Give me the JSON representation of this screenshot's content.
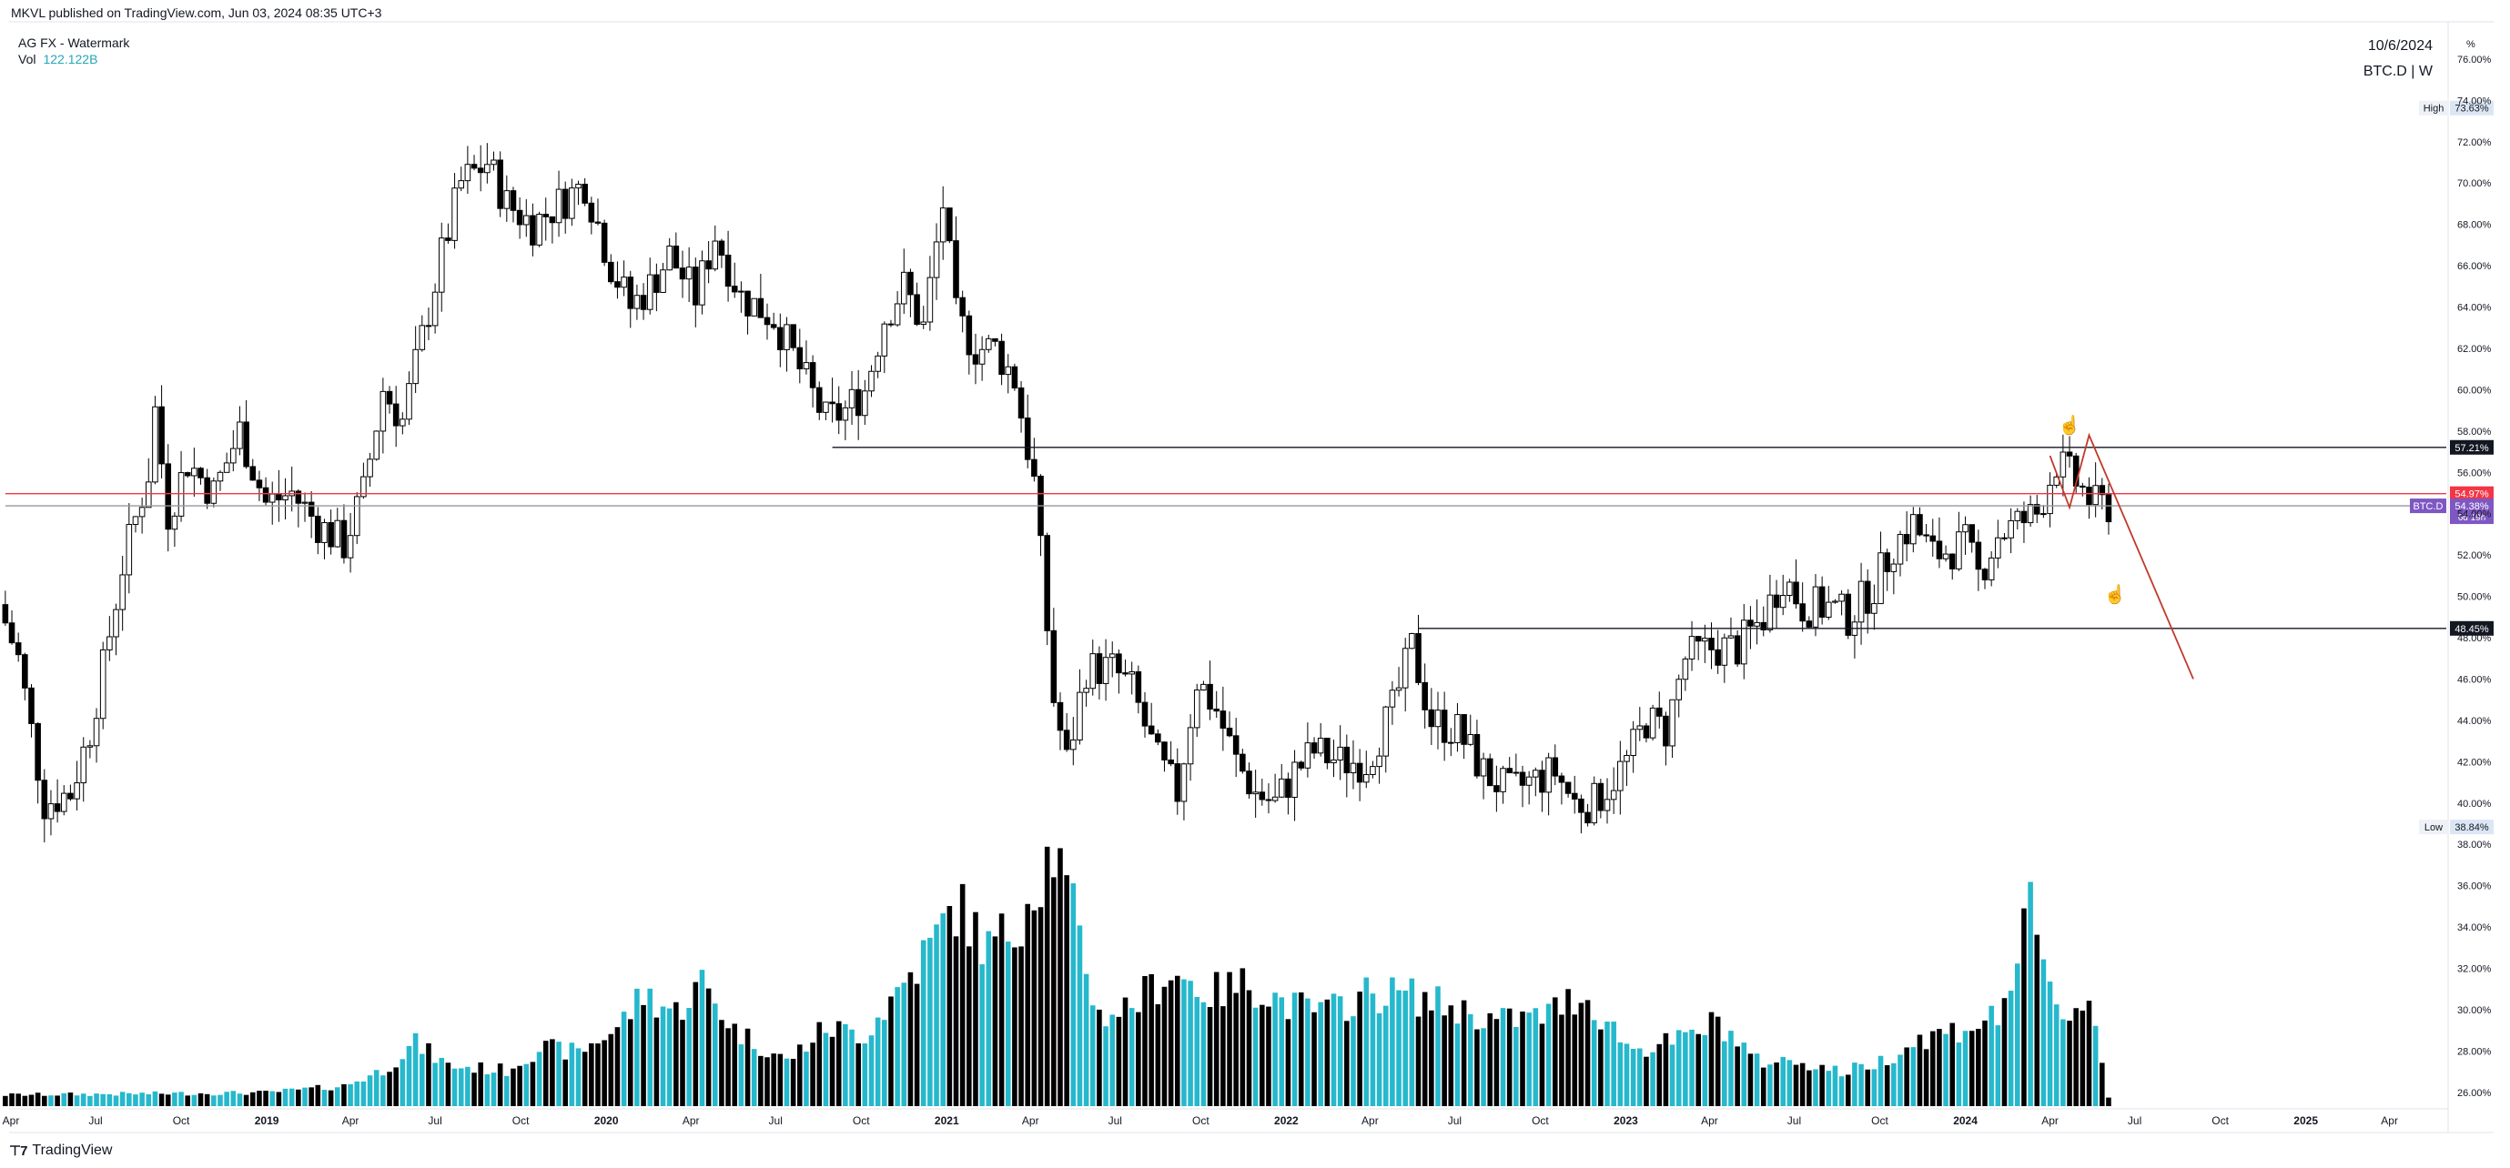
{
  "header": {
    "published": "MKVL published on TradingView.com, Jun 03, 2024 08:35 UTC+3",
    "title": "AG FX - Watermark",
    "vol_label": "Vol",
    "vol_value": "122.122B",
    "date": "10/6/2024",
    "symbol_interval": "BTC.D | W"
  },
  "footer": {
    "logo_text": "TradingView",
    "logo_icon": "tradingview-logo-icon"
  },
  "chart_data": {
    "type": "candlestick",
    "symbol": "BTC.D",
    "interval": "W",
    "y_unit": "%",
    "ylim": [
      25.2,
      77.8
    ],
    "y_ticks": [
      26,
      28,
      30,
      32,
      34,
      36,
      38,
      40,
      42,
      44,
      46,
      48,
      50,
      52,
      54,
      56,
      58,
      60,
      62,
      64,
      66,
      68,
      70,
      72,
      74,
      76
    ],
    "y_tick_labels": [
      "26.00%",
      "28.00%",
      "30.00%",
      "32.00%",
      "34.00%",
      "36.00%",
      "38.00%",
      "40.00%",
      "42.00%",
      "44.00%",
      "46.00%",
      "48.00%",
      "50.00%",
      "52.00%",
      "54.00%",
      "56.00%",
      "58.00%",
      "60.00%",
      "62.00%",
      "64.00%",
      "66.00%",
      "68.00%",
      "70.00%",
      "72.00%",
      "74.00%",
      "76.00%"
    ],
    "x_range": [
      "2018-04-01",
      "2025-06-01"
    ],
    "x_labels": [
      {
        "t": "2018-04-01",
        "label": "Apr"
      },
      {
        "t": "2018-07-01",
        "label": "Jul"
      },
      {
        "t": "2018-10-01",
        "label": "Oct"
      },
      {
        "t": "2019-01-01",
        "label": "2019"
      },
      {
        "t": "2019-04-01",
        "label": "Apr"
      },
      {
        "t": "2019-07-01",
        "label": "Jul"
      },
      {
        "t": "2019-10-01",
        "label": "Oct"
      },
      {
        "t": "2020-01-01",
        "label": "2020"
      },
      {
        "t": "2020-04-01",
        "label": "Apr"
      },
      {
        "t": "2020-07-01",
        "label": "Jul"
      },
      {
        "t": "2020-10-01",
        "label": "Oct"
      },
      {
        "t": "2021-01-01",
        "label": "2021"
      },
      {
        "t": "2021-04-01",
        "label": "Apr"
      },
      {
        "t": "2021-07-01",
        "label": "Jul"
      },
      {
        "t": "2021-10-01",
        "label": "Oct"
      },
      {
        "t": "2022-01-01",
        "label": "2022"
      },
      {
        "t": "2022-04-01",
        "label": "Apr"
      },
      {
        "t": "2022-07-01",
        "label": "Jul"
      },
      {
        "t": "2022-10-01",
        "label": "Oct"
      },
      {
        "t": "2023-01-01",
        "label": "2023"
      },
      {
        "t": "2023-04-01",
        "label": "Apr"
      },
      {
        "t": "2023-07-01",
        "label": "Jul"
      },
      {
        "t": "2023-10-01",
        "label": "Oct"
      },
      {
        "t": "2024-01-01",
        "label": "2024"
      },
      {
        "t": "2024-04-01",
        "label": "Apr"
      },
      {
        "t": "2024-07-01",
        "label": "Jul"
      },
      {
        "t": "2024-10-01",
        "label": "Oct"
      },
      {
        "t": "2025-01-01",
        "label": "2025"
      },
      {
        "t": "2025-04-01",
        "label": "Apr"
      }
    ],
    "price_path": [
      [
        "2018-03-26",
        49.6
      ],
      [
        "2018-04-16",
        47.0
      ],
      [
        "2018-05-14",
        40.0
      ],
      [
        "2018-06-11",
        40.5
      ],
      [
        "2018-07-02",
        43.5
      ],
      [
        "2018-07-16",
        46.5
      ],
      [
        "2018-08-06",
        51.5
      ],
      [
        "2018-09-03",
        56.0
      ],
      [
        "2018-09-10",
        59.0
      ],
      [
        "2018-09-24",
        54.0
      ],
      [
        "2018-10-15",
        56.5
      ],
      [
        "2018-11-12",
        55.0
      ],
      [
        "2018-12-10",
        58.0
      ],
      [
        "2019-01-07",
        54.5
      ],
      [
        "2019-02-04",
        55.0
      ],
      [
        "2019-03-04",
        53.5
      ],
      [
        "2019-04-01",
        52.5
      ],
      [
        "2019-04-22",
        55.0
      ],
      [
        "2019-05-13",
        60.0
      ],
      [
        "2019-06-03",
        58.5
      ],
      [
        "2019-06-24",
        62.5
      ],
      [
        "2019-07-15",
        66.5
      ],
      [
        "2019-08-05",
        70.0
      ],
      [
        "2019-09-02",
        71.0
      ],
      [
        "2019-09-23",
        69.0
      ],
      [
        "2019-10-21",
        68.0
      ],
      [
        "2019-11-18",
        69.0
      ],
      [
        "2019-12-16",
        70.0
      ],
      [
        "2020-01-13",
        66.0
      ],
      [
        "2020-02-03",
        64.0
      ],
      [
        "2020-02-24",
        65.0
      ],
      [
        "2020-03-16",
        66.5
      ],
      [
        "2020-04-13",
        64.5
      ],
      [
        "2020-05-04",
        67.5
      ],
      [
        "2020-06-01",
        64.5
      ],
      [
        "2020-07-06",
        63.5
      ],
      [
        "2020-08-03",
        61.0
      ],
      [
        "2020-08-31",
        58.5
      ],
      [
        "2020-09-21",
        59.0
      ],
      [
        "2020-10-12",
        60.0
      ],
      [
        "2020-11-02",
        63.5
      ],
      [
        "2020-11-23",
        65.0
      ],
      [
        "2020-12-14",
        63.0
      ],
      [
        "2021-01-04",
        69.0
      ],
      [
        "2021-01-18",
        63.5
      ],
      [
        "2021-02-08",
        62.0
      ],
      [
        "2021-03-01",
        62.0
      ],
      [
        "2021-03-22",
        60.5
      ],
      [
        "2021-04-12",
        55.5
      ],
      [
        "2021-05-03",
        45.0
      ],
      [
        "2021-05-17",
        42.0
      ],
      [
        "2021-06-07",
        46.5
      ],
      [
        "2021-07-05",
        46.5
      ],
      [
        "2021-07-26",
        45.5
      ],
      [
        "2021-08-23",
        42.0
      ],
      [
        "2021-09-13",
        40.5
      ],
      [
        "2021-10-04",
        46.0
      ],
      [
        "2021-10-25",
        44.5
      ],
      [
        "2021-11-15",
        42.0
      ],
      [
        "2021-12-06",
        40.5
      ],
      [
        "2021-12-27",
        40.0
      ],
      [
        "2022-01-17",
        41.5
      ],
      [
        "2022-02-07",
        42.5
      ],
      [
        "2022-03-07",
        42.0
      ],
      [
        "2022-04-04",
        42.0
      ],
      [
        "2022-05-02",
        44.5
      ],
      [
        "2022-05-23",
        47.5
      ],
      [
        "2022-06-13",
        44.0
      ],
      [
        "2022-07-11",
        43.5
      ],
      [
        "2022-08-08",
        41.5
      ],
      [
        "2022-09-05",
        40.5
      ],
      [
        "2022-09-26",
        41.0
      ],
      [
        "2022-10-24",
        41.5
      ],
      [
        "2022-11-14",
        40.0
      ],
      [
        "2022-12-05",
        40.0
      ],
      [
        "2023-01-09",
        42.0
      ],
      [
        "2023-01-30",
        44.0
      ],
      [
        "2023-02-20",
        43.5
      ],
      [
        "2023-03-13",
        47.0
      ],
      [
        "2023-04-10",
        47.5
      ],
      [
        "2023-05-08",
        47.5
      ],
      [
        "2023-06-05",
        49.0
      ],
      [
        "2023-06-26",
        51.0
      ],
      [
        "2023-07-17",
        49.5
      ],
      [
        "2023-08-14",
        49.5
      ],
      [
        "2023-09-04",
        49.0
      ],
      [
        "2023-10-02",
        50.5
      ],
      [
        "2023-10-23",
        52.5
      ],
      [
        "2023-11-13",
        53.5
      ],
      [
        "2023-12-04",
        52.0
      ],
      [
        "2024-01-08",
        52.5
      ],
      [
        "2024-01-22",
        51.0
      ],
      [
        "2024-02-12",
        53.0
      ],
      [
        "2024-03-04",
        53.5
      ],
      [
        "2024-03-25",
        54.0
      ],
      [
        "2024-04-15",
        56.5
      ],
      [
        "2024-05-06",
        55.5
      ],
      [
        "2024-05-27",
        54.38
      ]
    ],
    "volume_path": [
      [
        "2018-03-26",
        0.5
      ],
      [
        "2018-12-31",
        0.6
      ],
      [
        "2019-03-25",
        0.9
      ],
      [
        "2019-05-06",
        1.6
      ],
      [
        "2019-06-10",
        2.8
      ],
      [
        "2019-07-15",
        1.8
      ],
      [
        "2019-09-16",
        1.6
      ],
      [
        "2019-10-21",
        2.6
      ],
      [
        "2019-12-02",
        2.4
      ],
      [
        "2020-01-13",
        3.5
      ],
      [
        "2020-02-10",
        5.0
      ],
      [
        "2020-03-16",
        4.2
      ],
      [
        "2020-04-13",
        5.5
      ],
      [
        "2020-05-18",
        3.4
      ],
      [
        "2020-07-13",
        2.0
      ],
      [
        "2020-08-24",
        3.5
      ],
      [
        "2020-10-05",
        3.2
      ],
      [
        "2020-11-16",
        5.5
      ],
      [
        "2020-12-21",
        7.5
      ],
      [
        "2021-01-11",
        9.0
      ],
      [
        "2021-02-15",
        7.0
      ],
      [
        "2021-03-15",
        8.0
      ],
      [
        "2021-04-05",
        10.0
      ],
      [
        "2021-04-26",
        11.5
      ],
      [
        "2021-05-17",
        8.5
      ],
      [
        "2021-06-14",
        4.0
      ],
      [
        "2021-07-19",
        4.5
      ],
      [
        "2021-08-30",
        6.0
      ],
      [
        "2021-10-11",
        5.0
      ],
      [
        "2021-11-22",
        5.5
      ],
      [
        "2022-01-03",
        4.5
      ],
      [
        "2022-02-14",
        4.2
      ],
      [
        "2022-03-28",
        5.0
      ],
      [
        "2022-05-09",
        5.0
      ],
      [
        "2022-06-20",
        4.5
      ],
      [
        "2022-08-15",
        3.8
      ],
      [
        "2022-10-03",
        4.0
      ],
      [
        "2022-11-14",
        5.0
      ],
      [
        "2023-01-09",
        2.5
      ],
      [
        "2023-03-06",
        3.0
      ],
      [
        "2023-04-10",
        3.8
      ],
      [
        "2023-05-22",
        2.0
      ],
      [
        "2023-07-10",
        2.0
      ],
      [
        "2023-08-21",
        1.5
      ],
      [
        "2023-10-02",
        2.0
      ],
      [
        "2023-11-13",
        3.0
      ],
      [
        "2024-01-01",
        3.5
      ],
      [
        "2024-02-05",
        4.0
      ],
      [
        "2024-02-26",
        6.5
      ],
      [
        "2024-03-11",
        8.5
      ],
      [
        "2024-04-01",
        5.0
      ],
      [
        "2024-04-22",
        4.0
      ],
      [
        "2024-05-13",
        5.0
      ],
      [
        "2024-06-03",
        0.4
      ]
    ],
    "horizontal_levels": [
      {
        "from": "2020-08-31",
        "value": 57.21,
        "label": "57.21%",
        "color": "#131722"
      },
      {
        "from": "2022-05-23",
        "value": 48.45,
        "label": "48.45%",
        "color": "#131722"
      },
      {
        "from": "2018-03-26",
        "value": 54.97,
        "label": "54.97%",
        "color": "#f23645"
      },
      {
        "from": "2018-03-26",
        "value": 54.38,
        "label": "54.38%",
        "color": "#9598a1"
      }
    ],
    "price_tag": {
      "symbol": "BTC.D",
      "value": 54.38,
      "value_label": "54.38%",
      "countdown": "6d 19h",
      "color": "#7e57c2"
    },
    "high": {
      "label": "High",
      "value": 73.63,
      "value_label": "73.63%"
    },
    "low": {
      "label": "Low",
      "value": 38.84,
      "value_label": "38.84%"
    },
    "drawings": {
      "projection_line": {
        "color": "#c0392b",
        "points": [
          [
            "2024-04-01",
            56.8
          ],
          [
            "2024-04-22",
            54.3
          ],
          [
            "2024-05-13",
            57.8
          ],
          [
            "2024-09-02",
            46.0
          ]
        ]
      },
      "markers": [
        {
          "icon": "hand-pointer-icon",
          "color": "#26a6b8",
          "t": "2024-04-22",
          "value": 58.0
        },
        {
          "icon": "hand-pointer-icon",
          "color": "#26a6b8",
          "t": "2024-06-10",
          "value": 49.8
        }
      ]
    },
    "up_color": "#ffffff",
    "down_color": "#000000",
    "vol_up_color": "#26b8cc",
    "vol_down_color": "#000000"
  }
}
